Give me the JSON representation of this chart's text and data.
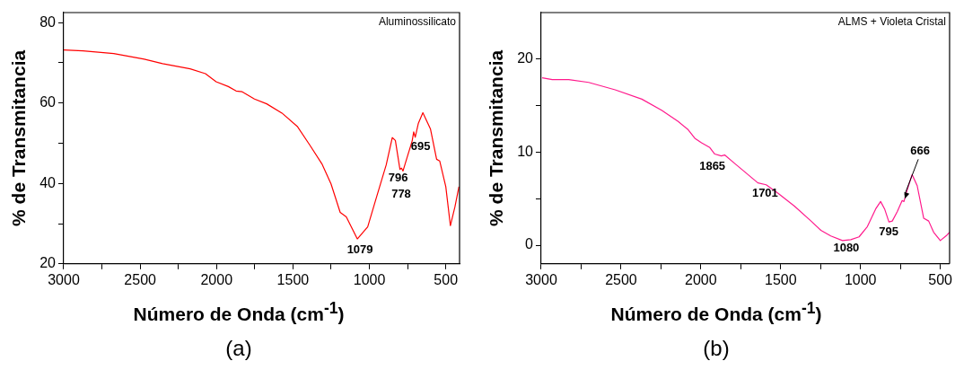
{
  "chart_data": [
    {
      "type": "line",
      "title": "(a)",
      "xlabel": "Número de Onda (cm$^{-1}$)",
      "ylabel": "% de Transmitancia",
      "x": [
        3000,
        2874,
        2673,
        2473,
        2353,
        2173,
        2073,
        2003,
        1923,
        1872,
        1832,
        1752,
        1672,
        1572,
        1472,
        1391,
        1311,
        1251,
        1191,
        1151,
        1079,
        1011,
        950,
        890,
        850,
        830,
        800,
        790,
        780,
        760,
        720,
        710,
        700,
        680,
        650,
        600,
        560,
        540,
        500,
        470,
        440,
        414
      ],
      "series": [
        {
          "color": "#ff0000",
          "values": [
            73.2,
            73.0,
            72.3,
            70.9,
            69.8,
            68.5,
            67.3,
            65.3,
            64.1,
            63.0,
            62.8,
            61.0,
            59.8,
            57.5,
            54.2,
            49.6,
            44.9,
            39.9,
            32.8,
            31.7,
            26.2,
            29.2,
            37.0,
            44.6,
            51.4,
            50.7,
            43.5,
            43.8,
            43.1,
            45.6,
            50.6,
            52.8,
            51.5,
            54.9,
            57.6,
            53.5,
            46.0,
            45.6,
            39.2,
            29.5,
            34.2,
            39.2
          ]
        }
      ],
      "xlim": [
        3000,
        410
      ],
      "ylim": [
        20,
        82.5
      ],
      "xticks": [
        3000,
        {
          "value": 2750,
          "label": null
        },
        2500,
        {
          "value": 2250,
          "label": null
        },
        2000,
        {
          "value": 1750,
          "label": null
        },
        1500,
        {
          "value": 1250,
          "label": null
        },
        1000,
        {
          "value": 750,
          "label": null
        },
        500
      ],
      "yticks": [
        20,
        {
          "value": 30,
          "label": null
        },
        40,
        {
          "value": 50,
          "label": null
        },
        60,
        {
          "value": 70,
          "label": null
        },
        80
      ],
      "grid": false,
      "legend": false,
      "marker": "none",
      "line_style": "solid",
      "annotations": [
        "Aluminossilicato",
        {
          "text": "1079",
          "x": 1079,
          "y": 26.2
        },
        {
          "text": "796",
          "x": 800,
          "y": 43.5
        },
        {
          "text": "778",
          "x": 780,
          "y": 43.1
        },
        {
          "text": "695",
          "x": 700,
          "y": 51.5
        }
      ]
    },
    {
      "type": "line",
      "title": "(b)",
      "xlabel": "Número de Onda (cm$^{-1}$)",
      "ylabel": "% de Transmitancia",
      "x": [
        2994,
        2931,
        2828,
        2703,
        2537,
        2370,
        2246,
        2142,
        2079,
        2038,
        1996,
        1944,
        1913,
        1872,
        1851,
        1789,
        1747,
        1643,
        1591,
        1518,
        1414,
        1310,
        1248,
        1186,
        1113,
        1061,
        1009,
        957,
        905,
        874,
        849,
        822,
        801,
        770,
        739,
        728,
        708,
        677,
        645,
        604,
        573,
        542,
        500,
        458,
        442
      ],
      "series": [
        {
          "color": "#ff1a8c",
          "values": [
            18.0,
            17.8,
            17.8,
            17.5,
            16.7,
            15.7,
            14.5,
            13.3,
            12.4,
            11.5,
            11.0,
            10.5,
            9.8,
            9.6,
            9.7,
            8.8,
            8.2,
            6.7,
            6.5,
            5.6,
            4.2,
            2.6,
            1.6,
            1.0,
            0.5,
            0.6,
            0.9,
            2.0,
            3.9,
            4.7,
            3.9,
            2.5,
            2.6,
            3.6,
            4.8,
            4.7,
            5.9,
            7.6,
            6.4,
            2.9,
            2.6,
            1.4,
            0.5,
            1.1,
            1.4
          ]
        }
      ],
      "xlim": [
        3000,
        442
      ],
      "ylim": [
        -2,
        25
      ],
      "xticks": [
        3000,
        {
          "value": 2750,
          "label": null
        },
        2500,
        {
          "value": 2250,
          "label": null
        },
        2000,
        {
          "value": 1750,
          "label": null
        },
        1500,
        {
          "value": 1250,
          "label": null
        },
        1000,
        {
          "value": 750,
          "label": null
        },
        500
      ],
      "yticks": [
        0,
        {
          "value": 5,
          "label": null
        },
        10,
        {
          "value": 15,
          "label": null
        },
        20
      ],
      "grid": false,
      "legend": false,
      "marker": "none",
      "line_style": "solid",
      "annotations": [
        "ALMS + Violeta Cristal",
        {
          "text": "1865",
          "x": 1872,
          "y": 9.6
        },
        {
          "text": "1701",
          "x": 1643,
          "y": 6.7
        },
        {
          "text": "1080",
          "x": 1061,
          "y": 0.6
        },
        {
          "text": "795",
          "x": 801,
          "y": 2.6
        },
        {
          "text": "666",
          "x": 728,
          "y": 4.7
        }
      ]
    }
  ]
}
